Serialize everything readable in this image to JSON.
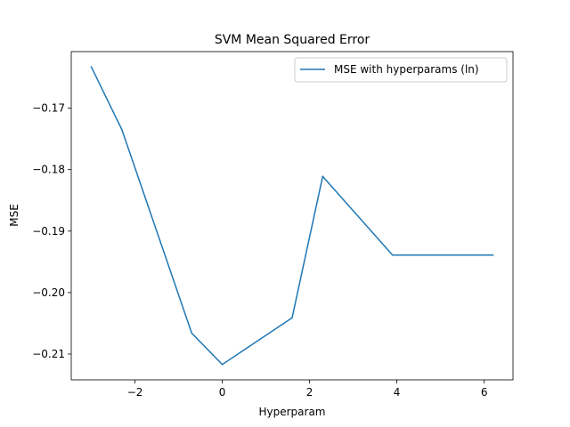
{
  "chart_data": {
    "type": "line",
    "title": "SVM Mean Squared Error",
    "xlabel": "Hyperparam",
    "ylabel": "MSE",
    "xlim": [
      -3.46,
      6.66
    ],
    "ylim": [
      -0.2142,
      -0.1608
    ],
    "xticks": [
      -2,
      0,
      2,
      4,
      6
    ],
    "xtick_labels": [
      "−2",
      "0",
      "2",
      "4",
      "6"
    ],
    "yticks": [
      -0.21,
      -0.2,
      -0.19,
      -0.18,
      -0.17
    ],
    "ytick_labels": [
      "−0.21",
      "−0.20",
      "−0.19",
      "−0.18",
      "−0.17"
    ],
    "grid": false,
    "legend_position": "upper right",
    "series": [
      {
        "name": "MSE with hyperparams (ln)",
        "color": "#1f77b4",
        "x": [
          -3.0,
          -2.3,
          -0.7,
          0.0,
          1.6,
          2.3,
          3.9,
          6.2
        ],
        "y": [
          -0.1633,
          -0.1735,
          -0.2066,
          -0.2117,
          -0.2041,
          -0.1811,
          -0.1939,
          -0.1939
        ]
      }
    ]
  }
}
